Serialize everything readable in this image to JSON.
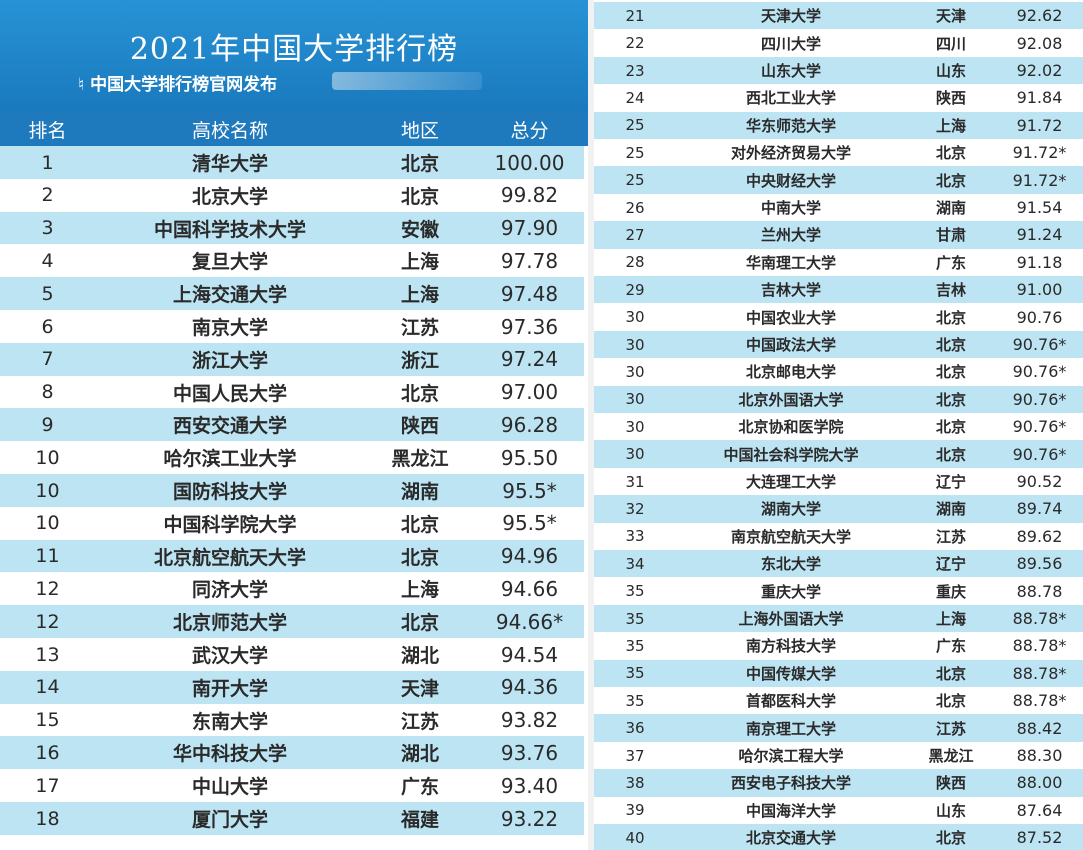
{
  "header": {
    "title": "2021年中国大学排行榜",
    "subtitle_mark": "♮",
    "subtitle": "中国大学排行榜官网发布"
  },
  "columns": {
    "rank": "排名",
    "name": "高校名称",
    "region": "地区",
    "score": "总分"
  },
  "left_rows": [
    {
      "rank": "1",
      "name": "清华大学",
      "region": "北京",
      "score": "100.00"
    },
    {
      "rank": "2",
      "name": "北京大学",
      "region": "北京",
      "score": "99.82"
    },
    {
      "rank": "3",
      "name": "中国科学技术大学",
      "region": "安徽",
      "score": "97.90"
    },
    {
      "rank": "4",
      "name": "复旦大学",
      "region": "上海",
      "score": "97.78"
    },
    {
      "rank": "5",
      "name": "上海交通大学",
      "region": "上海",
      "score": "97.48"
    },
    {
      "rank": "6",
      "name": "南京大学",
      "region": "江苏",
      "score": "97.36"
    },
    {
      "rank": "7",
      "name": "浙江大学",
      "region": "浙江",
      "score": "97.24"
    },
    {
      "rank": "8",
      "name": "中国人民大学",
      "region": "北京",
      "score": "97.00"
    },
    {
      "rank": "9",
      "name": "西安交通大学",
      "region": "陕西",
      "score": "96.28"
    },
    {
      "rank": "10",
      "name": "哈尔滨工业大学",
      "region": "黑龙江",
      "score": "95.50"
    },
    {
      "rank": "10",
      "name": "国防科技大学",
      "region": "湖南",
      "score": "95.5*"
    },
    {
      "rank": "10",
      "name": "中国科学院大学",
      "region": "北京",
      "score": "95.5*"
    },
    {
      "rank": "11",
      "name": "北京航空航天大学",
      "region": "北京",
      "score": "94.96"
    },
    {
      "rank": "12",
      "name": "同济大学",
      "region": "上海",
      "score": "94.66"
    },
    {
      "rank": "12",
      "name": "北京师范大学",
      "region": "北京",
      "score": "94.66*"
    },
    {
      "rank": "13",
      "name": "武汉大学",
      "region": "湖北",
      "score": "94.54"
    },
    {
      "rank": "14",
      "name": "南开大学",
      "region": "天津",
      "score": "94.36"
    },
    {
      "rank": "15",
      "name": "东南大学",
      "region": "江苏",
      "score": "93.82"
    },
    {
      "rank": "16",
      "name": "华中科技大学",
      "region": "湖北",
      "score": "93.76"
    },
    {
      "rank": "17",
      "name": "中山大学",
      "region": "广东",
      "score": "93.40"
    },
    {
      "rank": "18",
      "name": "厦门大学",
      "region": "福建",
      "score": "93.22"
    }
  ],
  "right_rows": [
    {
      "rank": "21",
      "name": "天津大学",
      "region": "天津",
      "score": "92.62"
    },
    {
      "rank": "22",
      "name": "四川大学",
      "region": "四川",
      "score": "92.08"
    },
    {
      "rank": "23",
      "name": "山东大学",
      "region": "山东",
      "score": "92.02"
    },
    {
      "rank": "24",
      "name": "西北工业大学",
      "region": "陕西",
      "score": "91.84"
    },
    {
      "rank": "25",
      "name": "华东师范大学",
      "region": "上海",
      "score": "91.72"
    },
    {
      "rank": "25",
      "name": "对外经济贸易大学",
      "region": "北京",
      "score": "91.72*"
    },
    {
      "rank": "25",
      "name": "中央财经大学",
      "region": "北京",
      "score": "91.72*"
    },
    {
      "rank": "26",
      "name": "中南大学",
      "region": "湖南",
      "score": "91.54"
    },
    {
      "rank": "27",
      "name": "兰州大学",
      "region": "甘肃",
      "score": "91.24"
    },
    {
      "rank": "28",
      "name": "华南理工大学",
      "region": "广东",
      "score": "91.18"
    },
    {
      "rank": "29",
      "name": "吉林大学",
      "region": "吉林",
      "score": "91.00"
    },
    {
      "rank": "30",
      "name": "中国农业大学",
      "region": "北京",
      "score": "90.76"
    },
    {
      "rank": "30",
      "name": "中国政法大学",
      "region": "北京",
      "score": "90.76*"
    },
    {
      "rank": "30",
      "name": "北京邮电大学",
      "region": "北京",
      "score": "90.76*"
    },
    {
      "rank": "30",
      "name": "北京外国语大学",
      "region": "北京",
      "score": "90.76*"
    },
    {
      "rank": "30",
      "name": "北京协和医学院",
      "region": "北京",
      "score": "90.76*"
    },
    {
      "rank": "30",
      "name": "中国社会科学院大学",
      "region": "北京",
      "score": "90.76*"
    },
    {
      "rank": "31",
      "name": "大连理工大学",
      "region": "辽宁",
      "score": "90.52"
    },
    {
      "rank": "32",
      "name": "湖南大学",
      "region": "湖南",
      "score": "89.74"
    },
    {
      "rank": "33",
      "name": "南京航空航天大学",
      "region": "江苏",
      "score": "89.62"
    },
    {
      "rank": "34",
      "name": "东北大学",
      "region": "辽宁",
      "score": "89.56"
    },
    {
      "rank": "35",
      "name": "重庆大学",
      "region": "重庆",
      "score": "88.78"
    },
    {
      "rank": "35",
      "name": "上海外国语大学",
      "region": "上海",
      "score": "88.78*"
    },
    {
      "rank": "35",
      "name": "南方科技大学",
      "region": "广东",
      "score": "88.78*"
    },
    {
      "rank": "35",
      "name": "中国传媒大学",
      "region": "北京",
      "score": "88.78*"
    },
    {
      "rank": "35",
      "name": "首都医科大学",
      "region": "北京",
      "score": "88.78*"
    },
    {
      "rank": "36",
      "name": "南京理工大学",
      "region": "江苏",
      "score": "88.42"
    },
    {
      "rank": "37",
      "name": "哈尔滨工程大学",
      "region": "黑龙江",
      "score": "88.30"
    },
    {
      "rank": "38",
      "name": "西安电子科技大学",
      "region": "陕西",
      "score": "88.00"
    },
    {
      "rank": "39",
      "name": "中国海洋大学",
      "region": "山东",
      "score": "87.64"
    },
    {
      "rank": "40",
      "name": "北京交通大学",
      "region": "北京",
      "score": "87.52"
    }
  ],
  "colors": {
    "banner": "#1f86cc",
    "header_row": "#1f79bd",
    "row_tint": "#bde4f3",
    "row_plain": "#ffffff"
  }
}
